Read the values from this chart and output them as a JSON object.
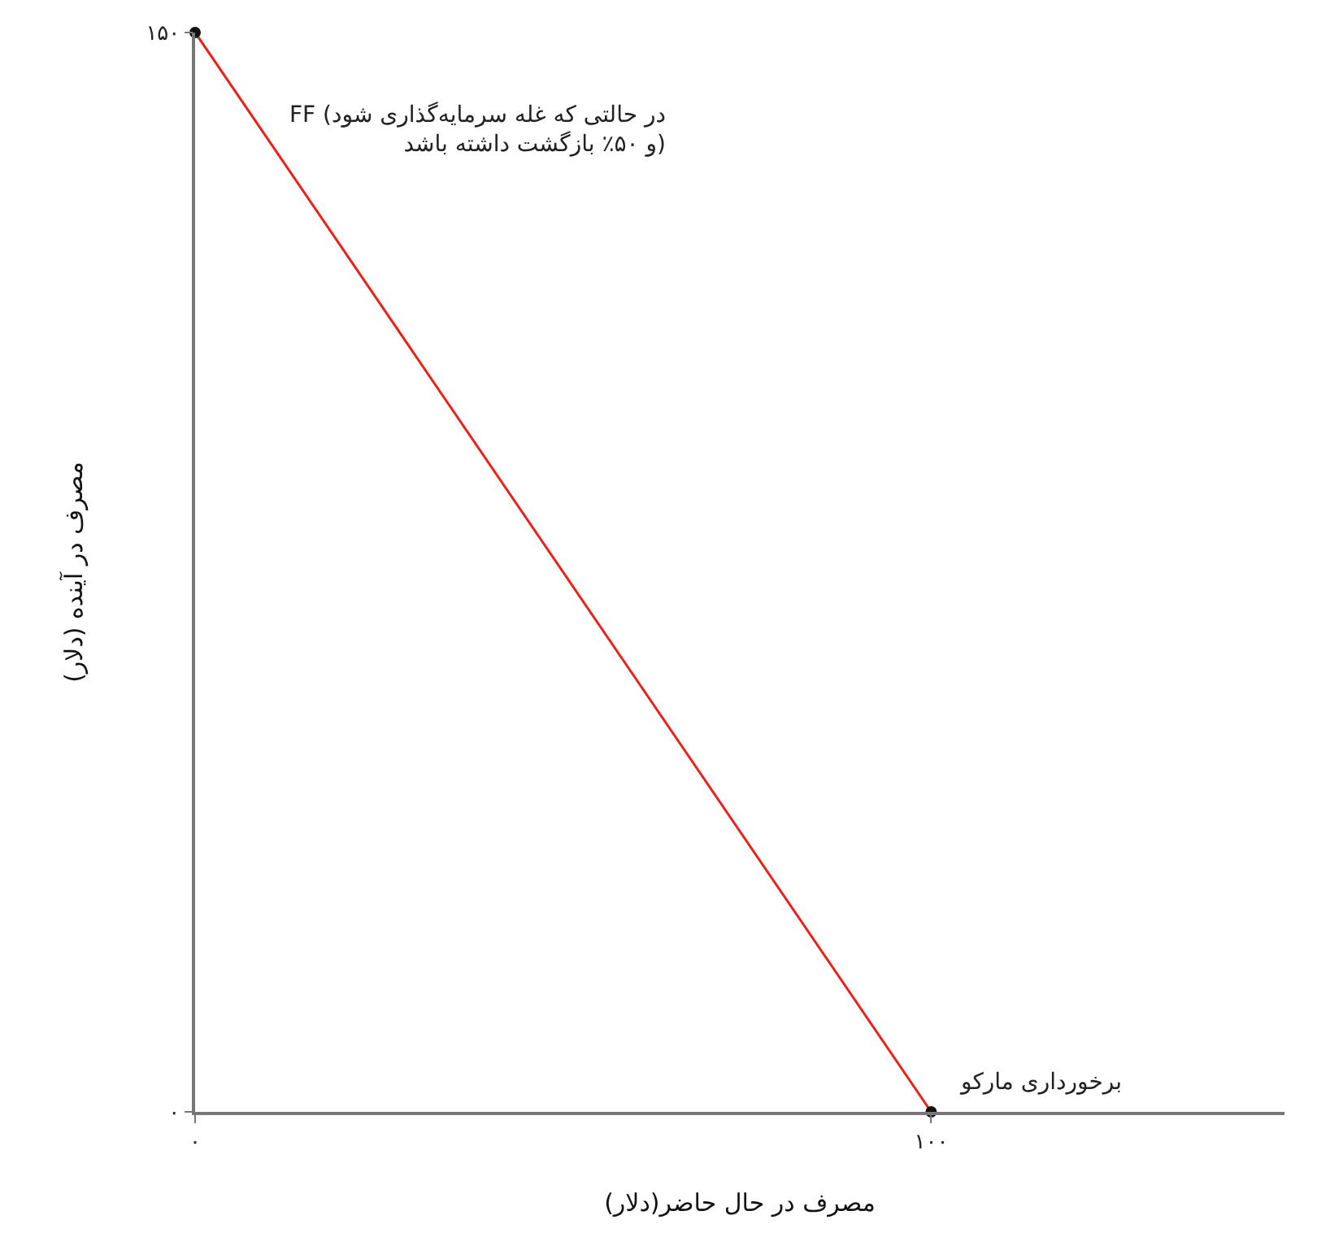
{
  "chart_data": {
    "type": "line",
    "xlabel": "مصرف در حال حاضر(دلار)",
    "ylabel": "مصرف در آینده (دلار)",
    "x": [
      0,
      100
    ],
    "series": [
      {
        "color": "#e8231b",
        "values": [
          150,
          0
        ]
      }
    ],
    "marker": "circle",
    "xlim": [
      0,
      148
    ],
    "ylim": [
      0,
      150
    ],
    "xticks": [
      {
        "value": 0,
        "label": "۰"
      },
      {
        "value": 100,
        "label": "۱۰۰"
      }
    ],
    "yticks": [
      {
        "value": 0,
        "label": "۰"
      },
      {
        "value": 150,
        "label": "۱۵۰"
      }
    ],
    "legend": false,
    "annotations": [
      "FF (در حالتی که غله سرمایه‌گذاری شود\nو ۵۰٪ بازگشت داشته باشد)",
      {
        "text": "برخورداری مارکو",
        "x": 100,
        "y": 0
      }
    ]
  }
}
